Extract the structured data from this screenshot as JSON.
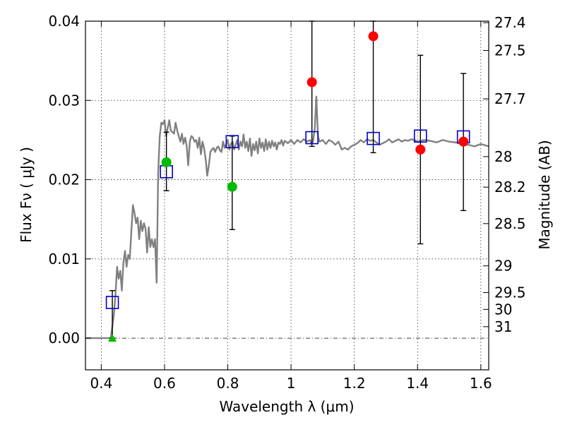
{
  "chart_data": {
    "type": "scatter",
    "title": "",
    "xlabel": "Wavelength  λ (μm)",
    "ylabel": "Flux  Fν  ( μJy )",
    "ylabel_right": "Magnitude (AB)",
    "xlim": [
      0.35,
      1.625
    ],
    "ylim": [
      -0.004,
      0.04
    ],
    "grid": true,
    "x_ticks": [
      {
        "value": 0.4,
        "label": "0.4"
      },
      {
        "value": 0.6,
        "label": "0.6"
      },
      {
        "value": 0.8,
        "label": "0.8"
      },
      {
        "value": 1.0,
        "label": "1"
      },
      {
        "value": 1.2,
        "label": "1.2"
      },
      {
        "value": 1.4,
        "label": "1.4"
      },
      {
        "value": 1.6,
        "label": "1.6"
      }
    ],
    "y_ticks": [
      {
        "value": 0.0,
        "label": "0.00"
      },
      {
        "value": 0.01,
        "label": "0.01"
      },
      {
        "value": 0.02,
        "label": "0.02"
      },
      {
        "value": 0.03,
        "label": "0.03"
      },
      {
        "value": 0.04,
        "label": "0.04"
      }
    ],
    "right_ticks": [
      {
        "value": 27.4,
        "label": "27.4"
      },
      {
        "value": 27.5,
        "label": "27.5"
      },
      {
        "value": 27.7,
        "label": "27.7"
      },
      {
        "value": 28,
        "label": "28"
      },
      {
        "value": 28.2,
        "label": "28.2"
      },
      {
        "value": 28.5,
        "label": "28.5"
      },
      {
        "value": 29,
        "label": "29"
      },
      {
        "value": 29.5,
        "label": "29.5"
      },
      {
        "value": 30,
        "label": "30"
      },
      {
        "value": 31,
        "label": "31"
      }
    ],
    "mag_zero_point": 23.9,
    "colors": {
      "template": "#808080",
      "model": "#0000cc",
      "observed_red": "#ff0000",
      "observed_green": "#00bb00",
      "errorbar": "#000000",
      "grid": "#333333"
    },
    "series": [
      {
        "name": "template spectrum",
        "kind": "line",
        "points": [
          [
            0.35,
            0.0
          ],
          [
            0.42,
            0.0
          ],
          [
            0.43,
            0.0
          ],
          [
            0.435,
            0.0015
          ],
          [
            0.44,
            0.003
          ],
          [
            0.445,
            0.0055
          ],
          [
            0.45,
            0.009
          ],
          [
            0.455,
            0.0075
          ],
          [
            0.46,
            0.0085
          ],
          [
            0.465,
            0.006
          ],
          [
            0.47,
            0.0095
          ],
          [
            0.475,
            0.011
          ],
          [
            0.48,
            0.009
          ],
          [
            0.485,
            0.0105
          ],
          [
            0.49,
            0.01
          ],
          [
            0.5,
            0.0168
          ],
          [
            0.505,
            0.0158
          ],
          [
            0.51,
            0.0145
          ],
          [
            0.515,
            0.0152
          ],
          [
            0.52,
            0.0125
          ],
          [
            0.525,
            0.0148
          ],
          [
            0.53,
            0.0135
          ],
          [
            0.535,
            0.0145
          ],
          [
            0.54,
            0.0138
          ],
          [
            0.545,
            0.0108
          ],
          [
            0.55,
            0.014
          ],
          [
            0.555,
            0.0115
          ],
          [
            0.56,
            0.0125
          ],
          [
            0.565,
            0.0115
          ],
          [
            0.57,
            0.0125
          ],
          [
            0.575,
            0.007
          ],
          [
            0.58,
            0.021
          ],
          [
            0.585,
            0.0255
          ],
          [
            0.59,
            0.0272
          ],
          [
            0.595,
            0.027
          ],
          [
            0.6,
            0.0275
          ],
          [
            0.605,
            0.0255
          ],
          [
            0.61,
            0.0265
          ],
          [
            0.615,
            0.0275
          ],
          [
            0.62,
            0.0262
          ],
          [
            0.625,
            0.026
          ],
          [
            0.63,
            0.0258
          ],
          [
            0.635,
            0.0272
          ],
          [
            0.64,
            0.0262
          ],
          [
            0.645,
            0.0255
          ],
          [
            0.65,
            0.0248
          ],
          [
            0.655,
            0.0258
          ],
          [
            0.66,
            0.0245
          ],
          [
            0.665,
            0.0253
          ],
          [
            0.67,
            0.0243
          ],
          [
            0.675,
            0.0218
          ],
          [
            0.68,
            0.0248
          ],
          [
            0.685,
            0.0255
          ],
          [
            0.69,
            0.0253
          ],
          [
            0.695,
            0.0248
          ],
          [
            0.7,
            0.025
          ],
          [
            0.705,
            0.024
          ],
          [
            0.71,
            0.0253
          ],
          [
            0.715,
            0.0232
          ],
          [
            0.72,
            0.0248
          ],
          [
            0.725,
            0.024
          ],
          [
            0.73,
            0.0226
          ],
          [
            0.735,
            0.0205
          ],
          [
            0.74,
            0.0218
          ],
          [
            0.745,
            0.0235
          ],
          [
            0.75,
            0.0238
          ],
          [
            0.755,
            0.024
          ],
          [
            0.76,
            0.0235
          ],
          [
            0.765,
            0.024
          ],
          [
            0.77,
            0.0242
          ],
          [
            0.775,
            0.0237
          ],
          [
            0.78,
            0.0235
          ],
          [
            0.785,
            0.0248
          ],
          [
            0.79,
            0.024
          ],
          [
            0.795,
            0.0245
          ],
          [
            0.8,
            0.025
          ],
          [
            0.805,
            0.0238
          ],
          [
            0.81,
            0.0245
          ],
          [
            0.815,
            0.0248
          ],
          [
            0.82,
            0.0238
          ],
          [
            0.825,
            0.0244
          ],
          [
            0.83,
            0.025
          ],
          [
            0.835,
            0.0238
          ],
          [
            0.84,
            0.0248
          ],
          [
            0.845,
            0.0242
          ],
          [
            0.85,
            0.0257
          ],
          [
            0.855,
            0.024
          ],
          [
            0.86,
            0.0248
          ],
          [
            0.865,
            0.0236
          ],
          [
            0.87,
            0.0252
          ],
          [
            0.875,
            0.023
          ],
          [
            0.88,
            0.0245
          ],
          [
            0.885,
            0.0237
          ],
          [
            0.89,
            0.0248
          ],
          [
            0.895,
            0.0233
          ],
          [
            0.9,
            0.0252
          ],
          [
            0.905,
            0.024
          ],
          [
            0.91,
            0.0247
          ],
          [
            0.915,
            0.0236
          ],
          [
            0.92,
            0.0251
          ],
          [
            0.925,
            0.0238
          ],
          [
            0.93,
            0.0248
          ],
          [
            0.935,
            0.024
          ],
          [
            0.94,
            0.0249
          ],
          [
            0.945,
            0.0242
          ],
          [
            0.95,
            0.0247
          ],
          [
            0.955,
            0.0238
          ],
          [
            0.96,
            0.0247
          ],
          [
            0.965,
            0.0245
          ],
          [
            0.97,
            0.025
          ],
          [
            0.975,
            0.0243
          ],
          [
            0.98,
            0.0249
          ],
          [
            0.99,
            0.0246
          ],
          [
            1.0,
            0.025
          ],
          [
            1.01,
            0.0245
          ],
          [
            1.02,
            0.025
          ],
          [
            1.03,
            0.0247
          ],
          [
            1.04,
            0.0251
          ],
          [
            1.05,
            0.0248
          ],
          [
            1.06,
            0.025
          ],
          [
            1.065,
            0.0245
          ],
          [
            1.07,
            0.0249
          ],
          [
            1.075,
            0.0265
          ],
          [
            1.08,
            0.0305
          ],
          [
            1.085,
            0.0255
          ],
          [
            1.09,
            0.0248
          ],
          [
            1.1,
            0.025
          ],
          [
            1.11,
            0.0245
          ],
          [
            1.12,
            0.025
          ],
          [
            1.13,
            0.0248
          ],
          [
            1.14,
            0.0244
          ],
          [
            1.15,
            0.0248
          ],
          [
            1.16,
            0.0238
          ],
          [
            1.17,
            0.024
          ],
          [
            1.18,
            0.0238
          ],
          [
            1.19,
            0.0242
          ],
          [
            1.2,
            0.0244
          ],
          [
            1.21,
            0.0246
          ],
          [
            1.22,
            0.025
          ],
          [
            1.23,
            0.0247
          ],
          [
            1.24,
            0.0251
          ],
          [
            1.25,
            0.0249
          ],
          [
            1.26,
            0.025
          ],
          [
            1.27,
            0.0247
          ],
          [
            1.28,
            0.0244
          ],
          [
            1.29,
            0.0246
          ],
          [
            1.3,
            0.0248
          ],
          [
            1.31,
            0.0251
          ],
          [
            1.32,
            0.0247
          ],
          [
            1.33,
            0.0249
          ],
          [
            1.34,
            0.0251
          ],
          [
            1.35,
            0.0248
          ],
          [
            1.36,
            0.025
          ],
          [
            1.37,
            0.0249
          ],
          [
            1.38,
            0.0251
          ],
          [
            1.39,
            0.025
          ],
          [
            1.4,
            0.0248
          ],
          [
            1.42,
            0.025
          ],
          [
            1.44,
            0.0249
          ],
          [
            1.46,
            0.0247
          ],
          [
            1.48,
            0.025
          ],
          [
            1.5,
            0.0248
          ],
          [
            1.52,
            0.0247
          ],
          [
            1.54,
            0.0245
          ],
          [
            1.56,
            0.0244
          ],
          [
            1.58,
            0.0242
          ],
          [
            1.6,
            0.0245
          ],
          [
            1.625,
            0.0242
          ]
        ]
      },
      {
        "name": "model photometry",
        "kind": "open-square",
        "points": [
          {
            "x": 0.435,
            "y": 0.0045
          },
          {
            "x": 0.606,
            "y": 0.021
          },
          {
            "x": 0.814,
            "y": 0.0248
          },
          {
            "x": 1.066,
            "y": 0.0253
          },
          {
            "x": 1.26,
            "y": 0.0252
          },
          {
            "x": 1.409,
            "y": 0.0255
          },
          {
            "x": 1.545,
            "y": 0.0254
          }
        ]
      },
      {
        "name": "observed photometry",
        "kind": "points-with-errors",
        "points": [
          {
            "x": 0.435,
            "y": 0.0,
            "err_low": 0.0,
            "err_high": 0.006,
            "color": "green",
            "marker": "triangle"
          },
          {
            "x": 0.606,
            "y": 0.0222,
            "err_low": 0.0036,
            "err_high": 0.0038,
            "color": "green",
            "marker": "circle"
          },
          {
            "x": 0.814,
            "y": 0.0191,
            "err_low": 0.0054,
            "err_high": 0.0064,
            "color": "green",
            "marker": "circle"
          },
          {
            "x": 1.066,
            "y": 0.0323,
            "err_low": 0.0081,
            "err_high": 0.0077,
            "color": "red",
            "marker": "circle"
          },
          {
            "x": 1.26,
            "y": 0.0381,
            "err_low": 0.0147,
            "err_high": 0.0019,
            "color": "red",
            "marker": "circle"
          },
          {
            "x": 1.409,
            "y": 0.0238,
            "err_low": 0.0119,
            "err_high": 0.0119,
            "color": "red",
            "marker": "circle"
          },
          {
            "x": 1.545,
            "y": 0.0248,
            "err_low": 0.0087,
            "err_high": 0.0086,
            "color": "red",
            "marker": "circle"
          }
        ]
      }
    ]
  }
}
